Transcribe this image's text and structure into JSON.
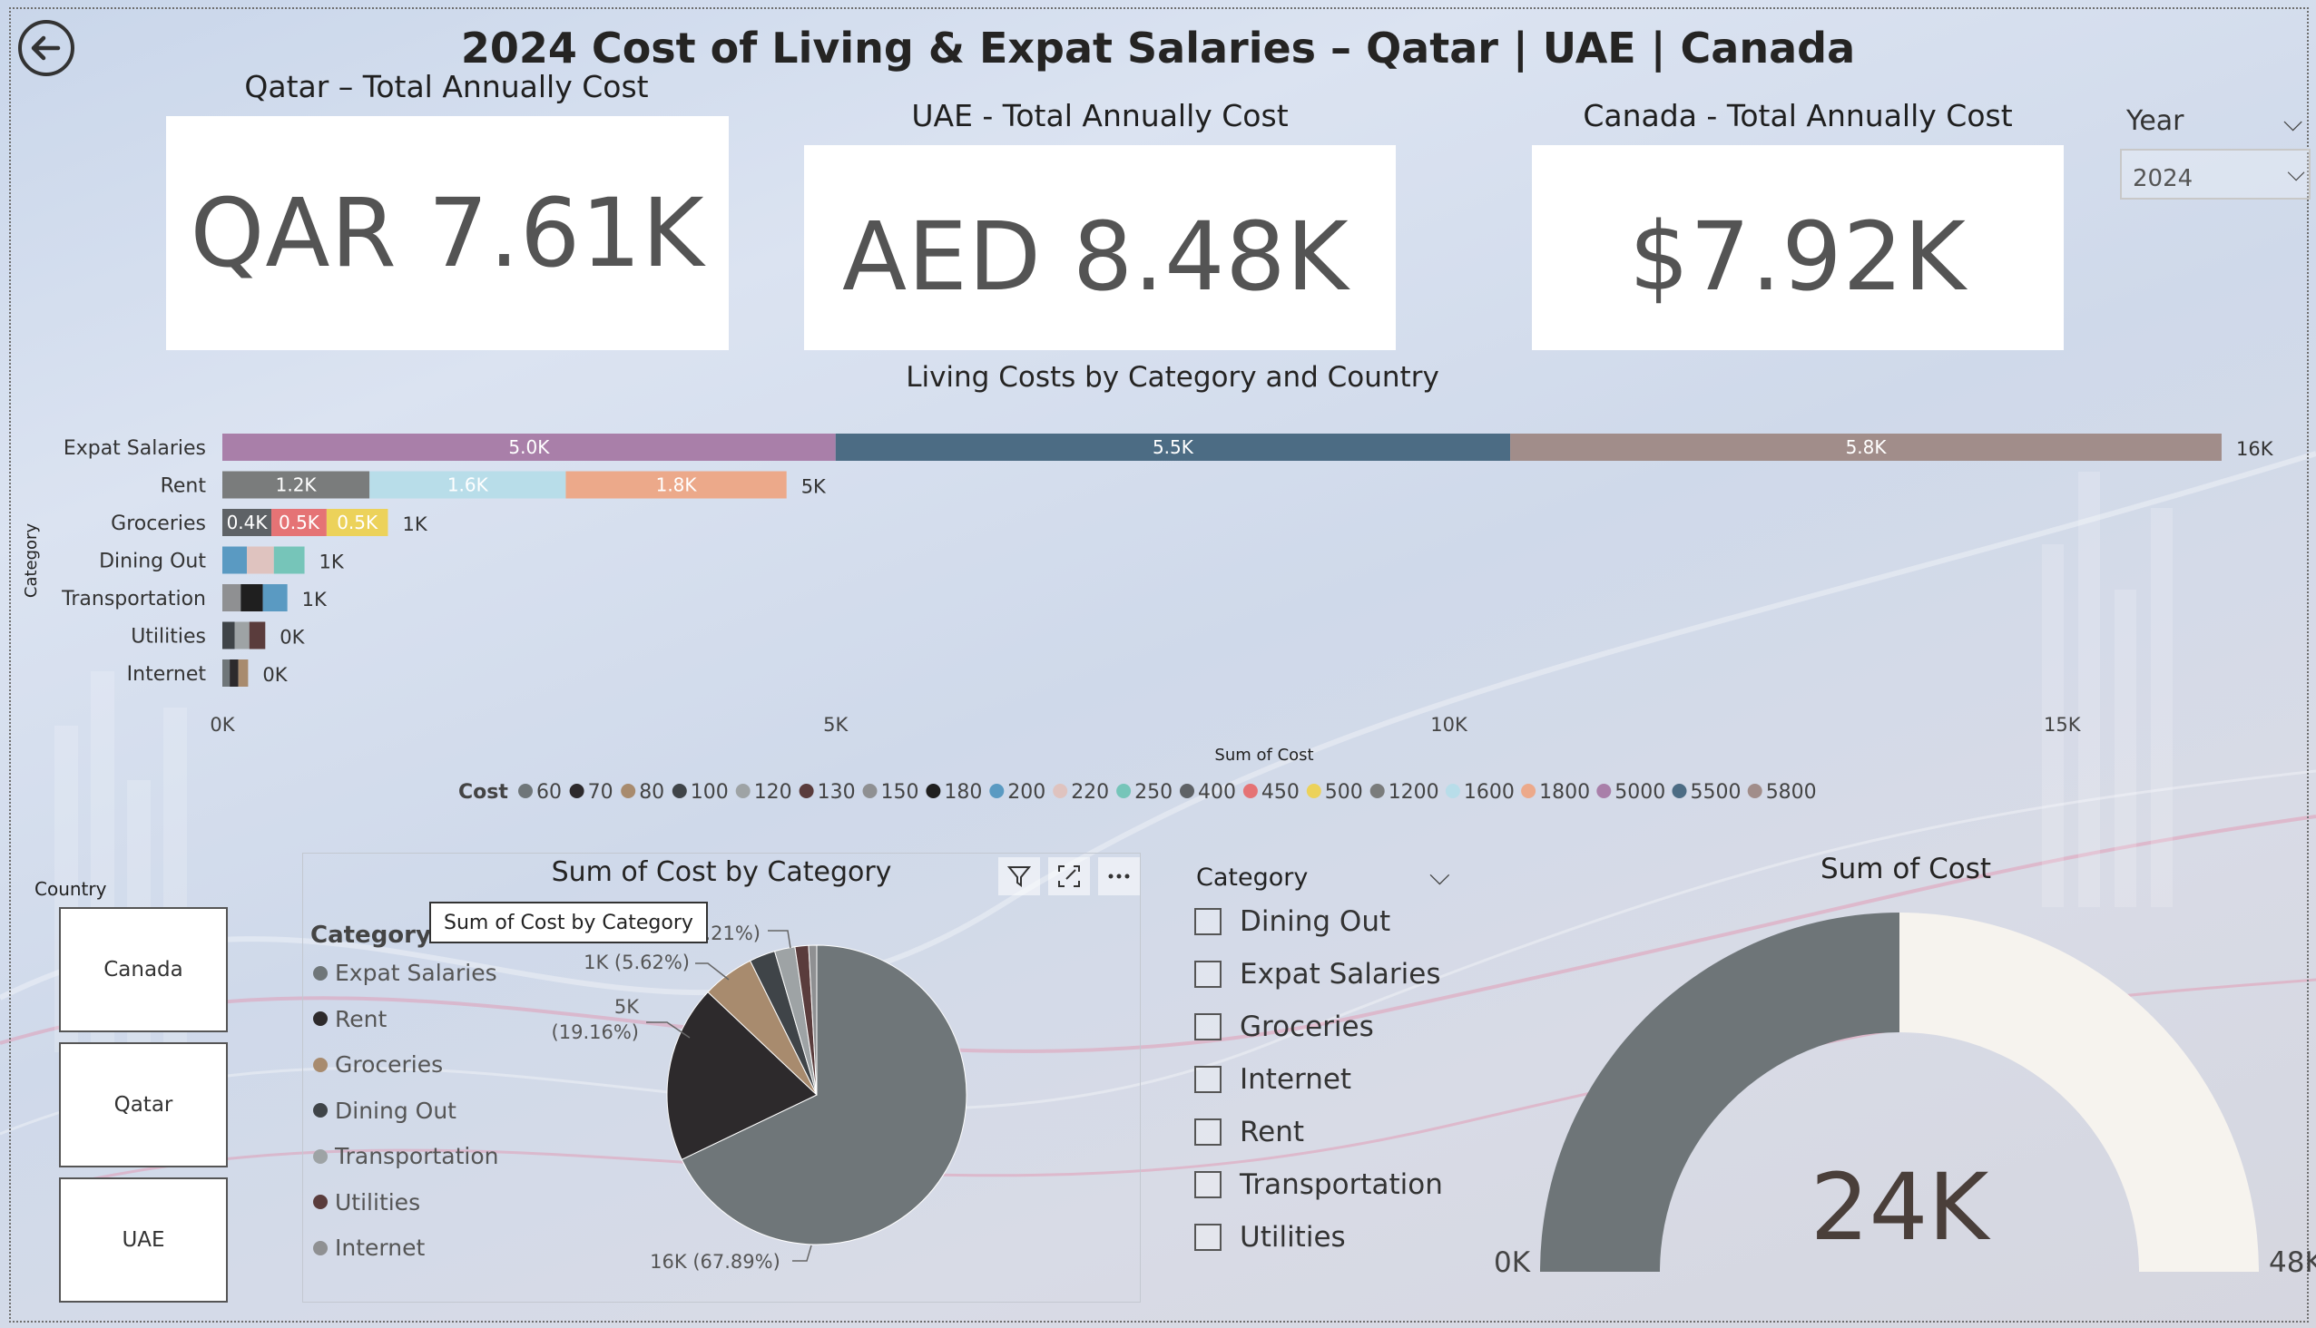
{
  "title": "2024 Cost of Living & Expat Salaries – Qatar | UAE | Canada",
  "kpis": [
    {
      "label": "Qatar – Total Annually Cost",
      "value": "QAR 7.61K"
    },
    {
      "label": "UAE - Total Annually Cost",
      "value": "AED 8.48K"
    },
    {
      "label": "Canada - Total Annually Cost",
      "value": "$7.92K"
    }
  ],
  "year_slicer": {
    "label": "Year",
    "selected": "2024"
  },
  "country_slicer": {
    "label": "Country",
    "options": [
      "Canada",
      "Qatar",
      "UAE"
    ]
  },
  "chart_data": [
    {
      "type": "bar",
      "orientation": "horizontal-stacked",
      "title": "Living Costs by Category and Country",
      "xlabel": "Sum of Cost",
      "ylabel": "Category",
      "xlim": [
        0,
        16500
      ],
      "xticks": [
        "0K",
        "5K",
        "10K",
        "15K"
      ],
      "legend_title": "Cost",
      "legend_position": "bottom",
      "legend": [
        {
          "name": "60",
          "color": "#6f7679"
        },
        {
          "name": "70",
          "color": "#2d2a2c"
        },
        {
          "name": "80",
          "color": "#a88b6e"
        },
        {
          "name": "100",
          "color": "#3f4448"
        },
        {
          "name": "120",
          "color": "#9ea3a5"
        },
        {
          "name": "130",
          "color": "#5a3c3c"
        },
        {
          "name": "150",
          "color": "#8f9092"
        },
        {
          "name": "180",
          "color": "#1f1f1f"
        },
        {
          "name": "200",
          "color": "#5a9ac2"
        },
        {
          "name": "220",
          "color": "#dfc3bf"
        },
        {
          "name": "250",
          "color": "#76c5b9"
        },
        {
          "name": "400",
          "color": "#5e6266"
        },
        {
          "name": "450",
          "color": "#e57375"
        },
        {
          "name": "500",
          "color": "#ecd25a"
        },
        {
          "name": "1200",
          "color": "#7a7c7c"
        },
        {
          "name": "1600",
          "color": "#b8dde9"
        },
        {
          "name": "1800",
          "color": "#eca98a"
        },
        {
          "name": "5000",
          "color": "#a97fa9"
        },
        {
          "name": "5500",
          "color": "#4c6c84"
        },
        {
          "name": "5800",
          "color": "#a18d8a"
        }
      ],
      "categories": [
        {
          "name": "Expat Salaries",
          "total_label": "16K",
          "segments": [
            {
              "value": 5000,
              "label": "5.0K",
              "color": "#a97fa9"
            },
            {
              "value": 5500,
              "label": "5.5K",
              "color": "#4c6c84"
            },
            {
              "value": 5800,
              "label": "5.8K",
              "color": "#a18d8a"
            }
          ]
        },
        {
          "name": "Rent",
          "total_label": "5K",
          "segments": [
            {
              "value": 1200,
              "label": "1.2K",
              "color": "#7a7c7c"
            },
            {
              "value": 1600,
              "label": "1.6K",
              "color": "#b8dde9"
            },
            {
              "value": 1800,
              "label": "1.8K",
              "color": "#eca98a"
            }
          ]
        },
        {
          "name": "Groceries",
          "total_label": "1K",
          "segments": [
            {
              "value": 400,
              "label": "0.4K",
              "color": "#5e6266"
            },
            {
              "value": 450,
              "label": "0.5K",
              "color": "#e57375"
            },
            {
              "value": 500,
              "label": "0.5K",
              "color": "#ecd25a"
            }
          ]
        },
        {
          "name": "Dining Out",
          "total_label": "1K",
          "segments": [
            {
              "value": 200,
              "label": "",
              "color": "#5a9ac2"
            },
            {
              "value": 220,
              "label": "",
              "color": "#dfc3bf"
            },
            {
              "value": 250,
              "label": "",
              "color": "#76c5b9"
            }
          ]
        },
        {
          "name": "Transportation",
          "total_label": "1K",
          "segments": [
            {
              "value": 150,
              "label": "",
              "color": "#8f9092"
            },
            {
              "value": 180,
              "label": "",
              "color": "#1f1f1f"
            },
            {
              "value": 200,
              "label": "",
              "color": "#5a9ac2"
            }
          ]
        },
        {
          "name": "Utilities",
          "total_label": "0K",
          "segments": [
            {
              "value": 100,
              "label": "",
              "color": "#3f4448"
            },
            {
              "value": 120,
              "label": "",
              "color": "#9ea3a5"
            },
            {
              "value": 130,
              "label": "",
              "color": "#5a3c3c"
            }
          ]
        },
        {
          "name": "Internet",
          "total_label": "0K",
          "segments": [
            {
              "value": 60,
              "label": "",
              "color": "#6f7679"
            },
            {
              "value": 70,
              "label": "",
              "color": "#2d2a2c"
            },
            {
              "value": 80,
              "label": "",
              "color": "#a88b6e"
            }
          ]
        }
      ]
    },
    {
      "type": "pie",
      "title": "Sum of Cost by Category",
      "legend_title": "Category",
      "legend_position": "left",
      "slices": [
        {
          "name": "Expat Salaries",
          "value": 16300,
          "percent": 67.89,
          "label": "16K (67.89%)",
          "color": "#6f7679"
        },
        {
          "name": "Rent",
          "value": 4600,
          "percent": 19.16,
          "label": "5K (19.16%)",
          "color": "#2d2a2c"
        },
        {
          "name": "Groceries",
          "value": 1350,
          "percent": 5.62,
          "label": "1K (5.62%)",
          "color": "#a88b6e"
        },
        {
          "name": "Dining Out",
          "value": 670,
          "percent": 2.79,
          "label": "",
          "color": "#3f4448"
        },
        {
          "name": "Transportation",
          "value": 530,
          "percent": 2.21,
          "label": "2.21%)",
          "color": "#9ea3a5"
        },
        {
          "name": "Utilities",
          "value": 350,
          "percent": 1.46,
          "label": "",
          "color": "#5a3c3c"
        },
        {
          "name": "Internet",
          "value": 210,
          "percent": 0.87,
          "label": "",
          "color": "#8f9092"
        }
      ],
      "tooltip": "Sum of Cost by Category"
    },
    {
      "type": "gauge",
      "title": "Sum of Cost",
      "value": 24000,
      "value_label": "24K",
      "min_label": "0K",
      "max_label": "48K",
      "min": 0,
      "max": 48000,
      "fill_color": "#6e7578",
      "track_color": "#f6f3ee"
    }
  ],
  "category_slicer": {
    "label": "Category",
    "options": [
      "Dining Out",
      "Expat Salaries",
      "Groceries",
      "Internet",
      "Rent",
      "Transportation",
      "Utilities"
    ]
  }
}
